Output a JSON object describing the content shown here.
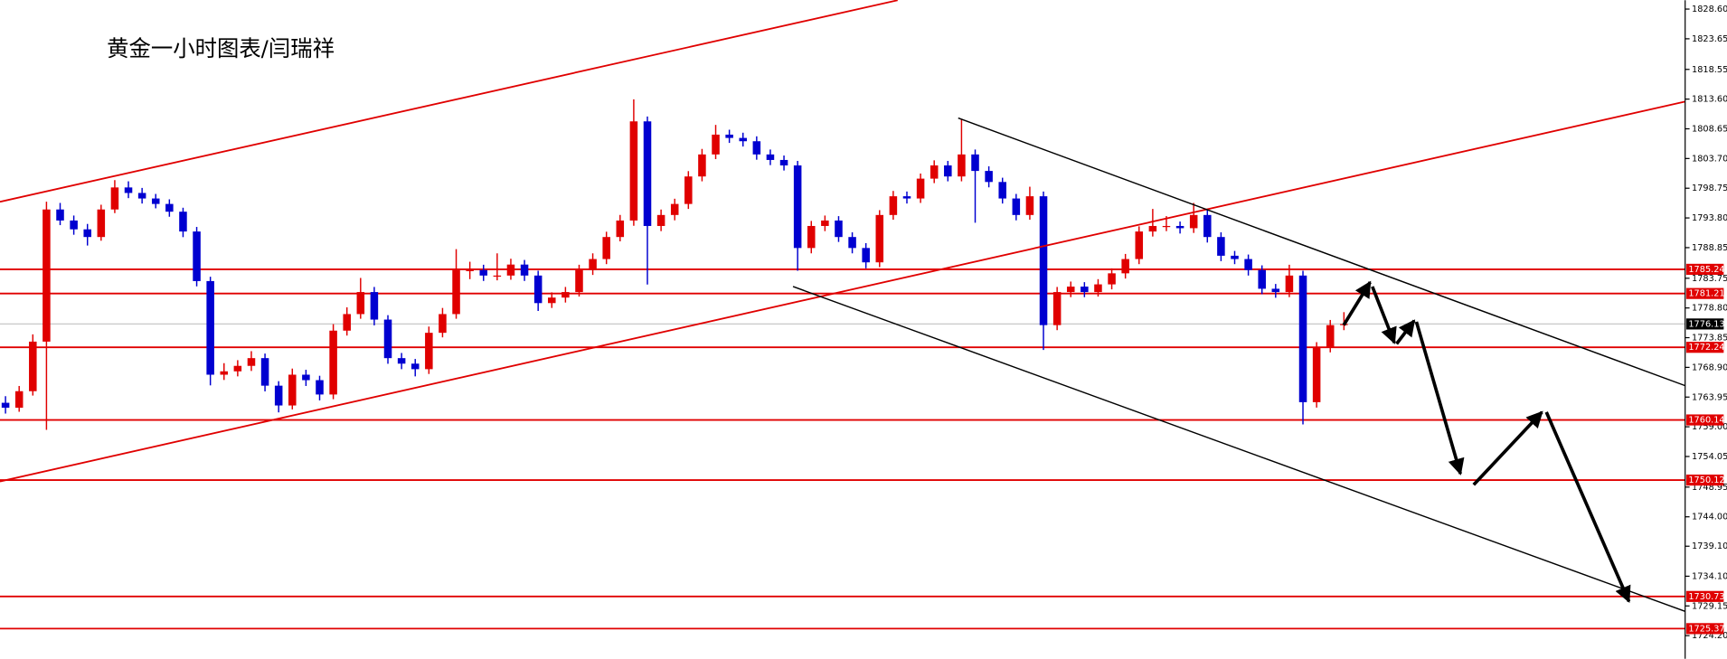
{
  "chart_data": {
    "type": "candlestick",
    "title": "黄金一小时图表/闫瑞祥",
    "up_color": "#e00000",
    "down_color": "#0000d0",
    "level_color": "#e00000",
    "ylim": [
      1720.35,
      1830.07
    ],
    "yticks": [
      {
        "value": 1828.6,
        "label": "1828.60"
      },
      1823.65,
      1818.55,
      {
        "value": 1813.6,
        "label": "1813.60"
      },
      1808.65,
      {
        "value": 1803.7,
        "label": "1803.70"
      },
      1798.75,
      {
        "value": 1793.8,
        "label": "1793.80"
      },
      1788.85,
      1783.75,
      {
        "value": 1778.8,
        "label": "1778.80"
      },
      1773.85,
      {
        "value": 1768.9,
        "label": "1768.90"
      },
      1763.95,
      {
        "value": 1759,
        "label": "1759.00"
      },
      1754.05,
      1748.95,
      {
        "value": 1744,
        "label": "1744.00"
      },
      {
        "value": 1739.1,
        "label": "1739.10"
      },
      {
        "value": 1734.1,
        "label": "1734.10"
      },
      1729.15,
      {
        "value": 1724.2,
        "label": "1724.20"
      }
    ],
    "levels": [
      1785.24,
      1781.21,
      1772.24,
      1760.14,
      1750.12,
      1730.73,
      1725.37
    ],
    "current_price": 1776.13,
    "ohlc": [
      [
        1763.0,
        1764.1,
        1761.2,
        1762.18
      ],
      [
        1762.18,
        1765.8,
        1761.5,
        1764.93
      ],
      [
        1764.93,
        1774.4,
        1764.2,
        1773.19
      ],
      [
        1773.19,
        1796.5,
        1758.5,
        1795.21
      ],
      [
        1795.21,
        1796.3,
        1792.6,
        1793.37
      ],
      [
        1793.37,
        1794.2,
        1791.0,
        1791.9
      ],
      [
        1791.9,
        1792.8,
        1789.2,
        1790.62
      ],
      [
        1790.62,
        1796.0,
        1790.0,
        1795.21
      ],
      [
        1795.21,
        1800.1,
        1794.6,
        1798.88
      ],
      [
        1798.88,
        1799.9,
        1797.1,
        1797.96
      ],
      [
        1797.96,
        1798.8,
        1796.2,
        1797.04
      ],
      [
        1797.04,
        1797.8,
        1795.4,
        1796.13
      ],
      [
        1796.13,
        1796.9,
        1794.0,
        1794.84
      ],
      [
        1794.84,
        1795.5,
        1790.6,
        1791.54
      ],
      [
        1791.54,
        1792.3,
        1782.4,
        1783.28
      ],
      [
        1783.28,
        1784.0,
        1765.9,
        1767.68
      ],
      [
        1767.68,
        1769.6,
        1766.8,
        1768.24
      ],
      [
        1768.24,
        1770.1,
        1767.4,
        1769.15
      ],
      [
        1769.15,
        1771.6,
        1768.3,
        1770.44
      ],
      [
        1770.44,
        1771.2,
        1764.9,
        1765.85
      ],
      [
        1765.85,
        1766.6,
        1761.4,
        1762.55
      ],
      [
        1762.55,
        1768.7,
        1761.9,
        1767.68
      ],
      [
        1767.68,
        1768.5,
        1765.8,
        1766.77
      ],
      [
        1766.77,
        1767.5,
        1763.4,
        1764.38
      ],
      [
        1764.38,
        1776.1,
        1763.6,
        1775.02
      ],
      [
        1775.02,
        1778.9,
        1774.2,
        1777.78
      ],
      [
        1777.78,
        1783.8,
        1777.0,
        1781.45
      ],
      [
        1781.45,
        1782.3,
        1775.9,
        1776.86
      ],
      [
        1776.86,
        1777.6,
        1769.5,
        1770.44
      ],
      [
        1770.44,
        1771.3,
        1768.6,
        1769.52
      ],
      [
        1769.52,
        1770.3,
        1767.4,
        1768.6
      ],
      [
        1768.6,
        1775.7,
        1767.8,
        1774.66
      ],
      [
        1774.66,
        1778.8,
        1773.9,
        1777.78
      ],
      [
        1777.78,
        1788.6,
        1777.0,
        1785.12
      ],
      [
        1785.12,
        1786.5,
        1783.6,
        1785.12
      ],
      [
        1785.12,
        1786.0,
        1783.3,
        1784.2
      ],
      [
        1784.2,
        1787.9,
        1783.4,
        1784.2
      ],
      [
        1784.2,
        1787.0,
        1783.5,
        1786.03
      ],
      [
        1786.03,
        1786.8,
        1783.3,
        1784.2
      ],
      [
        1784.2,
        1785.0,
        1778.3,
        1779.61
      ],
      [
        1779.61,
        1781.4,
        1778.8,
        1780.53
      ],
      [
        1780.53,
        1782.3,
        1779.7,
        1781.45
      ],
      [
        1781.45,
        1786.0,
        1780.7,
        1785.12
      ],
      [
        1785.12,
        1787.9,
        1784.3,
        1786.95
      ],
      [
        1786.95,
        1791.5,
        1786.1,
        1790.62
      ],
      [
        1790.62,
        1794.3,
        1789.9,
        1793.37
      ],
      [
        1793.37,
        1813.56,
        1792.5,
        1809.89
      ],
      [
        1809.89,
        1810.7,
        1782.7,
        1792.46
      ],
      [
        1792.46,
        1795.2,
        1791.6,
        1794.29
      ],
      [
        1794.29,
        1797.0,
        1793.4,
        1796.13
      ],
      [
        1796.13,
        1801.6,
        1795.3,
        1800.71
      ],
      [
        1800.71,
        1805.3,
        1799.9,
        1804.38
      ],
      [
        1804.38,
        1809.3,
        1803.6,
        1807.68
      ],
      [
        1807.68,
        1808.5,
        1806.3,
        1807.13
      ],
      [
        1807.13,
        1808.0,
        1805.7,
        1806.58
      ],
      [
        1806.58,
        1807.4,
        1803.5,
        1804.38
      ],
      [
        1804.38,
        1805.2,
        1802.6,
        1803.46
      ],
      [
        1803.46,
        1804.2,
        1801.7,
        1802.55
      ],
      [
        1802.55,
        1803.3,
        1785.0,
        1788.79
      ],
      [
        1788.79,
        1793.3,
        1787.9,
        1792.46
      ],
      [
        1792.46,
        1794.2,
        1791.6,
        1793.37
      ],
      [
        1793.37,
        1794.1,
        1789.8,
        1790.62
      ],
      [
        1790.62,
        1791.4,
        1787.9,
        1788.79
      ],
      [
        1788.79,
        1789.6,
        1785.4,
        1786.4
      ],
      [
        1786.4,
        1795.1,
        1785.6,
        1794.29
      ],
      [
        1794.29,
        1798.3,
        1793.5,
        1797.41
      ],
      [
        1797.41,
        1798.2,
        1796.2,
        1797.04
      ],
      [
        1797.04,
        1801.2,
        1796.3,
        1800.35
      ],
      [
        1800.35,
        1803.4,
        1799.6,
        1802.55
      ],
      [
        1802.55,
        1803.3,
        1799.9,
        1800.71
      ],
      [
        1800.71,
        1810.25,
        1799.9,
        1804.38
      ],
      [
        1804.38,
        1805.2,
        1793.0,
        1801.63
      ],
      [
        1801.63,
        1802.4,
        1798.9,
        1799.79
      ],
      [
        1799.79,
        1800.5,
        1796.2,
        1797.04
      ],
      [
        1797.04,
        1797.8,
        1793.4,
        1794.29
      ],
      [
        1794.29,
        1799.0,
        1793.5,
        1797.41
      ],
      [
        1797.41,
        1798.2,
        1771.8,
        1775.94
      ],
      [
        1775.94,
        1782.3,
        1775.1,
        1781.45
      ],
      [
        1781.45,
        1783.2,
        1780.6,
        1782.36
      ],
      [
        1782.36,
        1783.1,
        1780.6,
        1781.45
      ],
      [
        1781.45,
        1783.6,
        1780.7,
        1782.73
      ],
      [
        1782.73,
        1785.4,
        1781.9,
        1784.57
      ],
      [
        1784.57,
        1787.8,
        1783.7,
        1786.95
      ],
      [
        1786.95,
        1792.4,
        1786.1,
        1791.54
      ],
      [
        1791.54,
        1795.3,
        1790.7,
        1792.46
      ],
      [
        1792.46,
        1794.1,
        1791.6,
        1792.46
      ],
      [
        1792.46,
        1793.2,
        1791.2,
        1792.09
      ],
      [
        1792.09,
        1796.3,
        1791.3,
        1794.29
      ],
      [
        1794.29,
        1795.1,
        1789.7,
        1790.62
      ],
      [
        1790.62,
        1791.4,
        1786.6,
        1787.5
      ],
      [
        1787.5,
        1788.3,
        1786.1,
        1786.95
      ],
      [
        1786.95,
        1787.7,
        1784.2,
        1785.12
      ],
      [
        1785.12,
        1785.9,
        1781.1,
        1782.0
      ],
      [
        1782.0,
        1782.8,
        1780.5,
        1781.45
      ],
      [
        1781.45,
        1786.0,
        1780.6,
        1784.2
      ],
      [
        1784.2,
        1785.0,
        1759.4,
        1763.1
      ],
      [
        1763.1,
        1773.1,
        1762.2,
        1772.27
      ],
      [
        1772.27,
        1776.8,
        1771.4,
        1775.94
      ],
      [
        1775.94,
        1778.1,
        1775.1,
        1776.13
      ]
    ]
  }
}
